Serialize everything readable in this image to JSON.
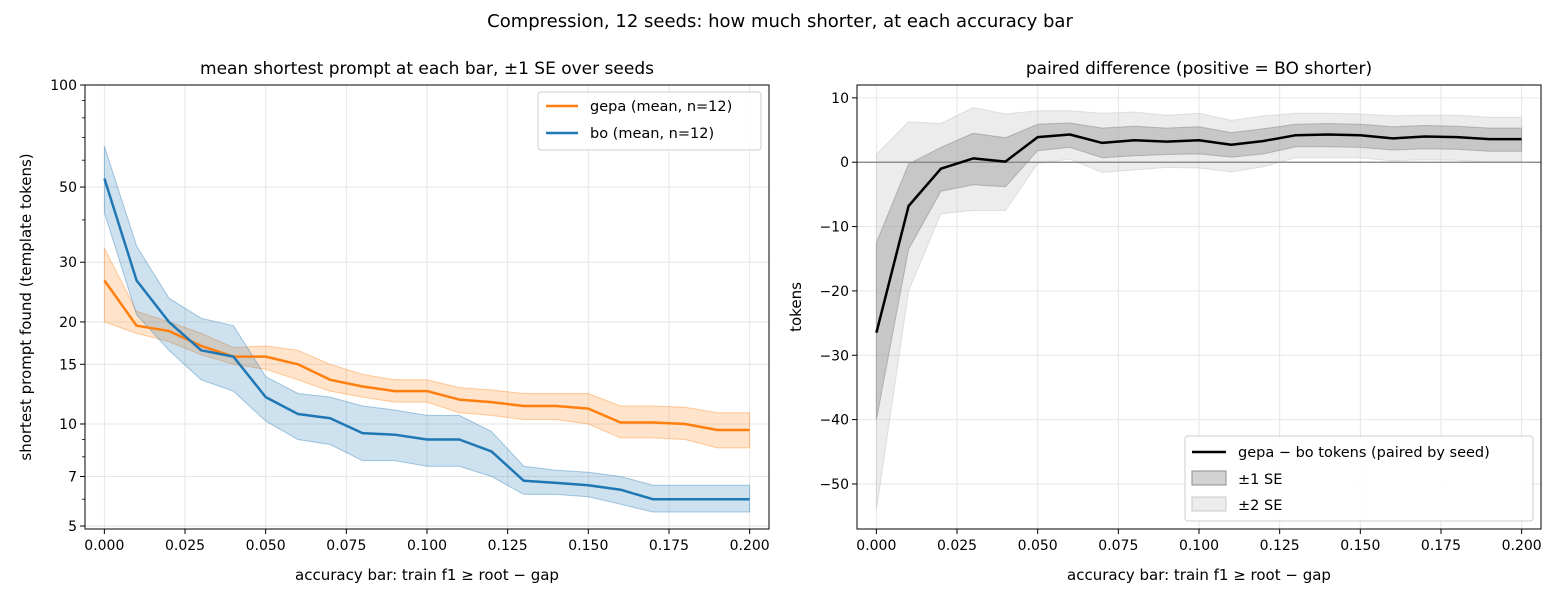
{
  "figure": {
    "suptitle": "Compression, 12 seeds: how much shorter, at each accuracy bar"
  },
  "colors": {
    "gepa": "#ff7f0e",
    "bo": "#1f77b4",
    "diff": "#000000",
    "band_1se": "#b0b0b0",
    "band_2se": "#dcdcdc",
    "grid": "#e6e6e6"
  },
  "chart_data": [
    {
      "type": "line",
      "title": "mean shortest prompt at each bar, ±1 SE over seeds",
      "xlabel": "accuracy bar: train f1 ≥ root − gap",
      "ylabel": "shortest prompt found (template tokens)",
      "yscale": "log",
      "xlim": [
        -0.006,
        0.206
      ],
      "ylim": [
        4.9,
        100
      ],
      "xticks": [
        0.0,
        0.025,
        0.05,
        0.075,
        0.1,
        0.125,
        0.15,
        0.175,
        0.2
      ],
      "xtick_labels": [
        "0.000",
        "0.025",
        "0.050",
        "0.075",
        "0.100",
        "0.125",
        "0.150",
        "0.175",
        "0.200"
      ],
      "yticks": [
        5,
        7,
        10,
        15,
        20,
        30,
        50,
        100
      ],
      "ytick_labels": [
        "5",
        "7",
        "10",
        "15",
        "20",
        "30",
        "50",
        "100"
      ],
      "grid": true,
      "legend_position": "top-right",
      "x": [
        0.0,
        0.01,
        0.02,
        0.03,
        0.04,
        0.05,
        0.06,
        0.07,
        0.08,
        0.09,
        0.1,
        0.11,
        0.12,
        0.13,
        0.14,
        0.15,
        0.16,
        0.17,
        0.18,
        0.19,
        0.2
      ],
      "series": [
        {
          "name": "gepa (mean, n=12)",
          "color_key": "gepa",
          "values": [
            26.5,
            19.5,
            18.8,
            17.0,
            15.8,
            15.8,
            15.0,
            13.5,
            12.9,
            12.5,
            12.5,
            11.8,
            11.6,
            11.3,
            11.3,
            11.1,
            10.1,
            10.1,
            10.0,
            9.6,
            9.6
          ],
          "lower": [
            20.0,
            18.5,
            17.5,
            16.0,
            15.0,
            14.5,
            13.5,
            12.5,
            12.0,
            11.6,
            11.6,
            10.8,
            10.6,
            10.3,
            10.3,
            10.0,
            9.1,
            9.1,
            9.0,
            8.5,
            8.5
          ],
          "upper": [
            33.0,
            21.5,
            20.0,
            18.5,
            16.8,
            17.0,
            16.5,
            15.0,
            14.0,
            13.5,
            13.5,
            12.8,
            12.6,
            12.3,
            12.3,
            12.3,
            11.3,
            11.3,
            11.2,
            10.8,
            10.8
          ]
        },
        {
          "name": "bo (mean, n=12)",
          "color_key": "bo",
          "values": [
            53.0,
            26.5,
            20.0,
            16.5,
            15.8,
            12.0,
            10.7,
            10.4,
            9.4,
            9.3,
            9.0,
            9.0,
            8.3,
            6.8,
            6.7,
            6.6,
            6.4,
            6.0,
            6.0,
            6.0,
            6.0
          ],
          "lower": [
            42.0,
            21.0,
            16.5,
            13.5,
            12.5,
            10.2,
            9.0,
            8.7,
            7.8,
            7.8,
            7.5,
            7.5,
            7.0,
            6.2,
            6.2,
            6.1,
            5.8,
            5.5,
            5.5,
            5.5,
            5.5
          ],
          "upper": [
            66.0,
            33.5,
            23.5,
            20.5,
            19.5,
            13.8,
            12.3,
            12.0,
            11.3,
            11.0,
            10.6,
            10.6,
            9.5,
            7.5,
            7.3,
            7.2,
            7.0,
            6.6,
            6.6,
            6.6,
            6.6
          ]
        }
      ]
    },
    {
      "type": "line",
      "title": "paired difference (positive = BO shorter)",
      "xlabel": "accuracy bar: train f1 ≥ root − gap",
      "ylabel": "tokens",
      "xlim": [
        -0.006,
        0.206
      ],
      "ylim": [
        -57,
        12
      ],
      "xticks": [
        0.0,
        0.025,
        0.05,
        0.075,
        0.1,
        0.125,
        0.15,
        0.175,
        0.2
      ],
      "xtick_labels": [
        "0.000",
        "0.025",
        "0.050",
        "0.075",
        "0.100",
        "0.125",
        "0.150",
        "0.175",
        "0.200"
      ],
      "yticks": [
        -50,
        -40,
        -30,
        -20,
        -10,
        0,
        10
      ],
      "ytick_labels": [
        "−50",
        "−40",
        "−30",
        "−20",
        "−10",
        "0",
        "10"
      ],
      "grid": true,
      "zero_line": true,
      "legend_position": "bottom-right",
      "x": [
        0.0,
        0.01,
        0.02,
        0.03,
        0.04,
        0.05,
        0.06,
        0.07,
        0.08,
        0.09,
        0.1,
        0.11,
        0.12,
        0.13,
        0.14,
        0.15,
        0.16,
        0.17,
        0.18,
        0.19,
        0.2
      ],
      "series": [
        {
          "name": "gepa − bo tokens (paired by seed)",
          "color_key": "diff",
          "values": [
            -26.5,
            -6.8,
            -1.0,
            0.6,
            0.1,
            3.9,
            4.3,
            3.0,
            3.4,
            3.2,
            3.4,
            2.7,
            3.3,
            4.2,
            4.3,
            4.2,
            3.7,
            4.0,
            3.9,
            3.6,
            3.6
          ],
          "se1_lower": [
            -40.0,
            -13.5,
            -4.5,
            -3.5,
            -3.8,
            1.8,
            2.3,
            0.7,
            1.0,
            1.2,
            1.3,
            0.8,
            1.3,
            2.4,
            2.4,
            2.3,
            1.9,
            2.1,
            2.0,
            1.7,
            1.7
          ],
          "se1_upper": [
            -12.5,
            -0.3,
            2.3,
            4.5,
            3.8,
            5.9,
            6.1,
            5.3,
            5.6,
            5.3,
            5.5,
            4.6,
            5.2,
            5.9,
            6.0,
            5.9,
            5.5,
            5.7,
            5.6,
            5.3,
            5.3
          ],
          "se2_lower": [
            -54.0,
            -20.0,
            -8.0,
            -7.5,
            -7.5,
            -0.2,
            0.5,
            -1.6,
            -1.2,
            -0.8,
            -0.9,
            -1.5,
            -0.7,
            0.7,
            0.7,
            0.7,
            0.2,
            0.4,
            0.3,
            0.0,
            0.0
          ],
          "se2_upper": [
            1.2,
            6.3,
            6.0,
            8.5,
            7.5,
            8.0,
            8.0,
            7.6,
            7.8,
            7.3,
            7.6,
            6.5,
            7.2,
            7.6,
            7.6,
            7.5,
            7.2,
            7.3,
            7.3,
            7.0,
            7.0
          ]
        }
      ],
      "bands": [
        {
          "name": "±1 SE",
          "color_key": "band_1se"
        },
        {
          "name": "±2 SE",
          "color_key": "band_2se"
        }
      ]
    }
  ]
}
